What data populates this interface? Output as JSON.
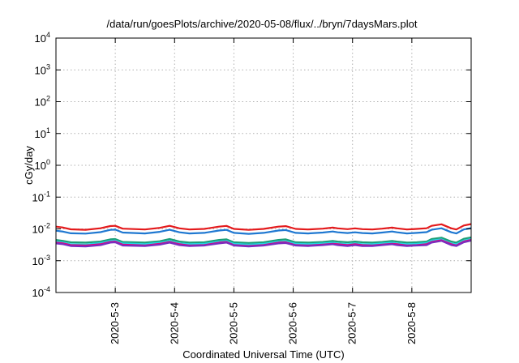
{
  "chart_data": {
    "type": "line",
    "title": "/data/run/goesPlots/archive/2020-05-08/flux/../bryn/7daysMars.plot",
    "xlabel": "Coordinated Universal Time (UTC)",
    "ylabel": "cGy/day",
    "yscale": "log",
    "ylim": [
      0.0001,
      10000
    ],
    "y_ticks": [
      {
        "base": "10",
        "exp": "-4",
        "value": 0.0001
      },
      {
        "base": "10",
        "exp": "-3",
        "value": 0.001
      },
      {
        "base": "10",
        "exp": "-2",
        "value": 0.01
      },
      {
        "base": "10",
        "exp": "-1",
        "value": 0.1
      },
      {
        "base": "10",
        "exp": "0",
        "value": 1
      },
      {
        "base": "10",
        "exp": "1",
        "value": 10
      },
      {
        "base": "10",
        "exp": "2",
        "value": 100
      },
      {
        "base": "10",
        "exp": "3",
        "value": 1000
      },
      {
        "base": "10",
        "exp": "4",
        "value": 10000
      }
    ],
    "x_range": [
      "2020-05-02T00:00",
      "2020-05-09T00:00"
    ],
    "x_ticks": [
      {
        "label": "2020-5-3",
        "value": "2020-05-03T00:00"
      },
      {
        "label": "2020-5-4",
        "value": "2020-05-04T00:00"
      },
      {
        "label": "2020-5-5",
        "value": "2020-05-05T00:00"
      },
      {
        "label": "2020-5-6",
        "value": "2020-05-06T00:00"
      },
      {
        "label": "2020-5-7",
        "value": "2020-05-07T00:00"
      },
      {
        "label": "2020-5-8",
        "value": "2020-05-08T00:00"
      }
    ],
    "grid": true,
    "legend": "none",
    "x": [
      "2020-05-02T00:00",
      "2020-05-02T03:00",
      "2020-05-02T06:00",
      "2020-05-02T12:00",
      "2020-05-02T18:00",
      "2020-05-02T22:00",
      "2020-05-03T00:00",
      "2020-05-03T03:00",
      "2020-05-03T12:00",
      "2020-05-03T18:00",
      "2020-05-03T22:00",
      "2020-05-04T02:00",
      "2020-05-04T06:00",
      "2020-05-04T12:00",
      "2020-05-04T18:00",
      "2020-05-04T21:00",
      "2020-05-05T00:00",
      "2020-05-05T06:00",
      "2020-05-05T12:00",
      "2020-05-05T18:00",
      "2020-05-05T21:00",
      "2020-05-06T01:00",
      "2020-05-06T06:00",
      "2020-05-06T12:00",
      "2020-05-06T16:00",
      "2020-05-06T18:00",
      "2020-05-06T22:00",
      "2020-05-07T01:00",
      "2020-05-07T04:00",
      "2020-05-07T08:00",
      "2020-05-07T12:00",
      "2020-05-07T16:00",
      "2020-05-07T18:00",
      "2020-05-07T22:00",
      "2020-05-08T02:00",
      "2020-05-08T06:00",
      "2020-05-08T08:00",
      "2020-05-08T12:00",
      "2020-05-08T16:00",
      "2020-05-08T18:00",
      "2020-05-08T21:00",
      "2020-05-09T00:00"
    ],
    "series": [
      {
        "color": "#e41a1c",
        "values": [
          0.0118,
          0.011,
          0.0097,
          0.0094,
          0.0105,
          0.0123,
          0.0125,
          0.0102,
          0.0096,
          0.0108,
          0.0125,
          0.0104,
          0.0096,
          0.01,
          0.0118,
          0.0124,
          0.01,
          0.0093,
          0.01,
          0.0118,
          0.0122,
          0.01,
          0.0096,
          0.0102,
          0.011,
          0.0104,
          0.0098,
          0.0104,
          0.0098,
          0.0096,
          0.0102,
          0.011,
          0.0104,
          0.0096,
          0.01,
          0.0105,
          0.0125,
          0.014,
          0.0104,
          0.0096,
          0.0128,
          0.0142
        ]
      },
      {
        "color": "#1f78d1",
        "values": [
          0.0088,
          0.0082,
          0.0073,
          0.0071,
          0.0079,
          0.0093,
          0.0095,
          0.0077,
          0.0072,
          0.0081,
          0.0094,
          0.0078,
          0.0072,
          0.0075,
          0.0089,
          0.0093,
          0.0075,
          0.007,
          0.0075,
          0.0089,
          0.0092,
          0.0075,
          0.0072,
          0.0077,
          0.0083,
          0.0078,
          0.0074,
          0.0078,
          0.0074,
          0.0072,
          0.0077,
          0.0083,
          0.0078,
          0.0072,
          0.0075,
          0.0079,
          0.0094,
          0.0105,
          0.0078,
          0.0072,
          0.0096,
          0.0106
        ]
      },
      {
        "color": "#1b9e77",
        "values": [
          0.0045,
          0.0042,
          0.0038,
          0.0037,
          0.004,
          0.0047,
          0.0048,
          0.0039,
          0.0037,
          0.0041,
          0.0048,
          0.004,
          0.0037,
          0.0038,
          0.0045,
          0.0047,
          0.0038,
          0.0036,
          0.0038,
          0.0045,
          0.0047,
          0.0038,
          0.0037,
          0.0039,
          0.0042,
          0.004,
          0.0038,
          0.004,
          0.0038,
          0.0037,
          0.0039,
          0.0042,
          0.004,
          0.0037,
          0.0038,
          0.004,
          0.0048,
          0.0053,
          0.004,
          0.0037,
          0.0049,
          0.0054
        ]
      },
      {
        "color": "#22d3e0",
        "values": [
          0.004,
          0.0037,
          0.0033,
          0.0032,
          0.0036,
          0.0042,
          0.0043,
          0.0035,
          0.0033,
          0.0037,
          0.0042,
          0.0035,
          0.0033,
          0.0034,
          0.004,
          0.0042,
          0.0034,
          0.0032,
          0.0034,
          0.004,
          0.0041,
          0.0034,
          0.0033,
          0.0035,
          0.0037,
          0.0035,
          0.0033,
          0.0035,
          0.0033,
          0.0033,
          0.0035,
          0.0037,
          0.0035,
          0.0033,
          0.0034,
          0.0036,
          0.0043,
          0.0047,
          0.0035,
          0.0033,
          0.0043,
          0.0048
        ]
      },
      {
        "color": "#e6007e",
        "values": [
          0.0037,
          0.0035,
          0.0031,
          0.003,
          0.0033,
          0.0039,
          0.004,
          0.0032,
          0.003,
          0.0034,
          0.0039,
          0.0033,
          0.003,
          0.0031,
          0.0037,
          0.0039,
          0.0031,
          0.0029,
          0.0031,
          0.0037,
          0.0038,
          0.0031,
          0.003,
          0.0032,
          0.0034,
          0.0033,
          0.0031,
          0.0033,
          0.0031,
          0.003,
          0.0032,
          0.0034,
          0.0033,
          0.003,
          0.0031,
          0.0033,
          0.0039,
          0.0044,
          0.0033,
          0.003,
          0.004,
          0.0045
        ]
      },
      {
        "color": "#7b2cbf",
        "values": [
          0.0035,
          0.0033,
          0.0029,
          0.0028,
          0.0031,
          0.0037,
          0.0038,
          0.003,
          0.0029,
          0.0032,
          0.0037,
          0.0031,
          0.0029,
          0.003,
          0.0035,
          0.0037,
          0.003,
          0.0028,
          0.003,
          0.0035,
          0.0036,
          0.003,
          0.0029,
          0.0031,
          0.0033,
          0.0031,
          0.0029,
          0.0031,
          0.0029,
          0.0029,
          0.0031,
          0.0033,
          0.0031,
          0.0029,
          0.003,
          0.0031,
          0.0037,
          0.0042,
          0.0031,
          0.0029,
          0.0038,
          0.0043
        ]
      }
    ]
  }
}
